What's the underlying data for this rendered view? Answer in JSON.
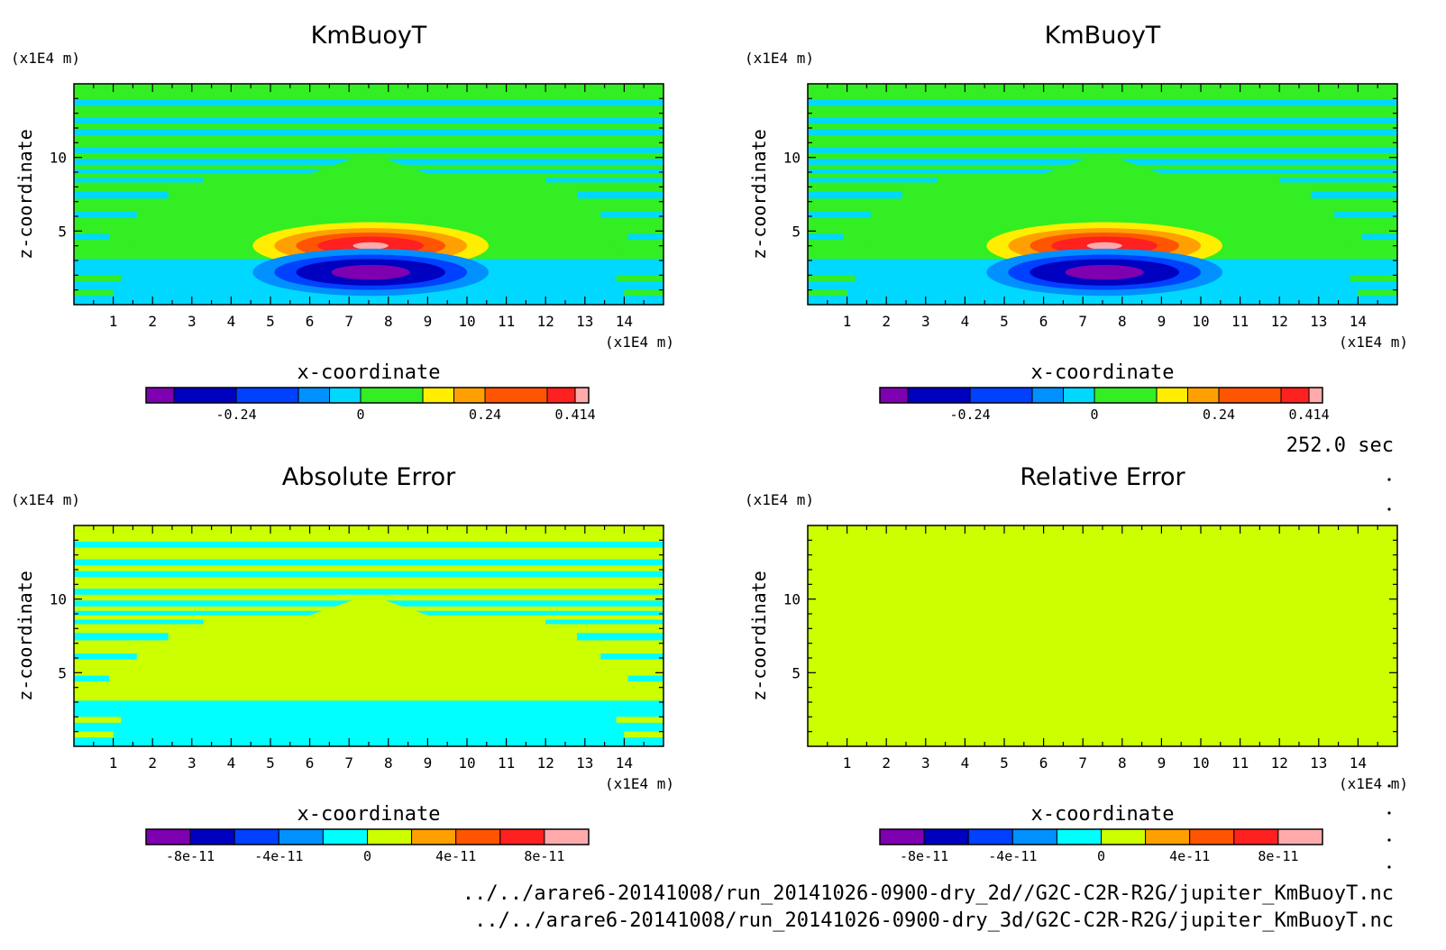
{
  "figure": {
    "time_label": "252.0 sec",
    "files": [
      "../../arare6-20141008/run_20141026-0900-dry_2d//G2C-C2R-R2G/jupiter_KmBuoyT.nc",
      "../../arare6-20141008/run_20141026-0900-dry_3d/G2C-C2R-R2G/jupiter_KmBuoyT.nc"
    ],
    "colors": {
      "purple": "#7f00b0",
      "navy": "#0000c0",
      "blue": "#0040ff",
      "azure": "#0090ff",
      "cyan_dark": "#00d8ff",
      "cyan": "#00ffff",
      "green": "#33ee22",
      "lime": "#ccff00",
      "yellow": "#ffee00",
      "orange": "#ffa000",
      "orangered": "#ff5500",
      "red": "#ff2020",
      "pink": "#ffaaaa"
    }
  },
  "chart_data": [
    {
      "type": "heatmap",
      "id": "panel1",
      "title": "KmBuoyT",
      "xlabel": "x-coordinate",
      "ylabel": "z-coordinate",
      "x_unit": "(x1E4 m)",
      "y_unit": "(x1E4 m)",
      "xlim": [
        0,
        15
      ],
      "ylim": [
        0,
        15
      ],
      "x_ticks": [
        1,
        2,
        3,
        4,
        5,
        6,
        7,
        8,
        9,
        10,
        11,
        12,
        13,
        14
      ],
      "y_ticks": [
        5,
        10
      ],
      "background": "green",
      "features": {
        "dome": true,
        "dome_color": "green",
        "lower_color": "cyan_dark",
        "bubbles": true,
        "bands": true,
        "band_color": "cyan_dark"
      },
      "colorbar": {
        "colors": [
          "purple",
          "navy",
          "blue",
          "azure",
          "cyan_dark",
          "green",
          "yellow",
          "orange",
          "orangered",
          "red",
          "pink"
        ],
        "bounds": [
          -0.414,
          -0.36,
          -0.24,
          -0.12,
          -0.06,
          0,
          0.12,
          0.18,
          0.24,
          0.36,
          0.414,
          0.44
        ],
        "tick_labels": [
          "-0.24",
          "0",
          "0.24",
          "0.414"
        ],
        "tick_values": [
          -0.24,
          0,
          0.24,
          0.414
        ]
      }
    },
    {
      "type": "heatmap",
      "id": "panel2",
      "title": "KmBuoyT",
      "xlabel": "x-coordinate",
      "ylabel": "z-coordinate",
      "x_unit": "(x1E4 m)",
      "y_unit": "(x1E4 m)",
      "xlim": [
        0,
        15
      ],
      "ylim": [
        0,
        15
      ],
      "x_ticks": [
        1,
        2,
        3,
        4,
        5,
        6,
        7,
        8,
        9,
        10,
        11,
        12,
        13,
        14
      ],
      "y_ticks": [
        5,
        10
      ],
      "background": "green",
      "features": {
        "dome": true,
        "dome_color": "green",
        "lower_color": "cyan_dark",
        "bubbles": true,
        "bands": true,
        "band_color": "cyan_dark"
      },
      "colorbar": {
        "colors": [
          "purple",
          "navy",
          "blue",
          "azure",
          "cyan_dark",
          "green",
          "yellow",
          "orange",
          "orangered",
          "red",
          "pink"
        ],
        "bounds": [
          -0.414,
          -0.36,
          -0.24,
          -0.12,
          -0.06,
          0,
          0.12,
          0.18,
          0.24,
          0.36,
          0.414,
          0.44
        ],
        "tick_labels": [
          "-0.24",
          "0",
          "0.24",
          "0.414"
        ],
        "tick_values": [
          -0.24,
          0,
          0.24,
          0.414
        ]
      }
    },
    {
      "type": "heatmap",
      "id": "panel3",
      "title": "Absolute Error",
      "xlabel": "x-coordinate",
      "ylabel": "z-coordinate",
      "x_unit": "(x1E4 m)",
      "y_unit": "(x1E4 m)",
      "xlim": [
        0,
        15
      ],
      "ylim": [
        0,
        15
      ],
      "x_ticks": [
        1,
        2,
        3,
        4,
        5,
        6,
        7,
        8,
        9,
        10,
        11,
        12,
        13,
        14
      ],
      "y_ticks": [
        5,
        10
      ],
      "background": "lime",
      "features": {
        "dome": true,
        "dome_color": "lime",
        "lower_color": "cyan",
        "bubbles": false,
        "bands": true,
        "band_color": "cyan"
      },
      "colorbar": {
        "colors": [
          "purple",
          "navy",
          "blue",
          "azure",
          "cyan",
          "lime",
          "orange",
          "orangered",
          "red",
          "pink"
        ],
        "bounds": [
          -1e-10,
          -8e-11,
          -6e-11,
          -4e-11,
          -2e-11,
          0,
          2e-11,
          4e-11,
          6e-11,
          8e-11,
          1e-10
        ],
        "tick_labels": [
          "-8e-11",
          "-4e-11",
          "0",
          "4e-11",
          "8e-11"
        ],
        "tick_values": [
          -8e-11,
          -4e-11,
          0,
          4e-11,
          8e-11
        ]
      }
    },
    {
      "type": "heatmap",
      "id": "panel4",
      "title": "Relative Error",
      "xlabel": "x-coordinate",
      "ylabel": "z-coordinate",
      "x_unit": "(x1E4 m)",
      "y_unit": "(x1E4 m)",
      "xlim": [
        0,
        15
      ],
      "ylim": [
        0,
        15
      ],
      "x_ticks": [
        1,
        2,
        3,
        4,
        5,
        6,
        7,
        8,
        9,
        10,
        11,
        12,
        13,
        14
      ],
      "y_ticks": [
        5,
        10
      ],
      "background": "lime",
      "features": {
        "dome": false,
        "bubbles": false,
        "bands": false
      },
      "colorbar": {
        "colors": [
          "purple",
          "navy",
          "blue",
          "azure",
          "cyan",
          "lime",
          "orange",
          "orangered",
          "red",
          "pink"
        ],
        "bounds": [
          -1e-10,
          -8e-11,
          -6e-11,
          -4e-11,
          -2e-11,
          0,
          2e-11,
          4e-11,
          6e-11,
          8e-11,
          1e-10
        ],
        "tick_labels": [
          "-8e-11",
          "-4e-11",
          "0",
          "4e-11",
          "8e-11"
        ],
        "tick_values": [
          -8e-11,
          -4e-11,
          0,
          4e-11,
          8e-11
        ]
      }
    }
  ]
}
